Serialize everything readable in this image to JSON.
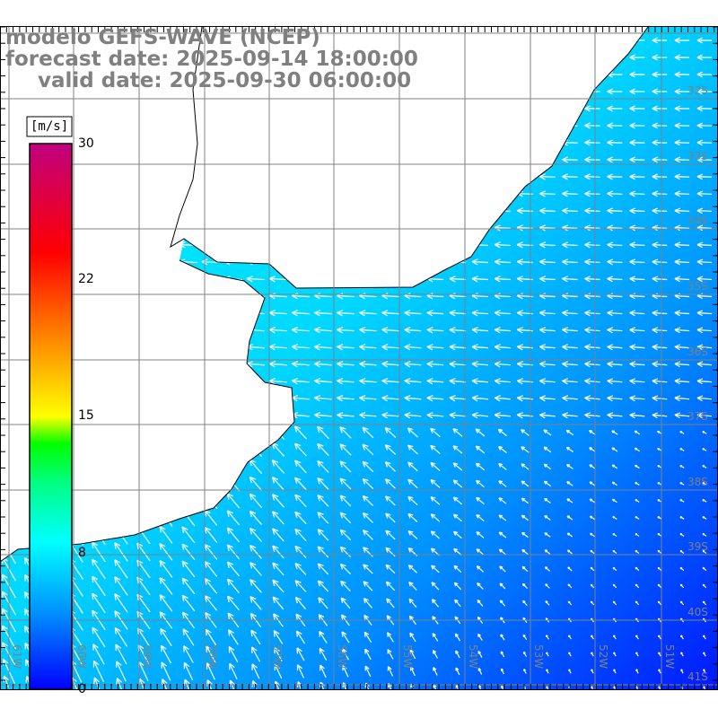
{
  "title": {
    "line1": "modelo GEFS-WAVE (NCEP)",
    "line2": "forecast date: 2025-09-14 18:00:00",
    "line3": "valid date: 2025-09-30 06:00:00"
  },
  "colorbar": {
    "unit": "[m/s]",
    "ticks": [
      "30",
      "22",
      "15",
      "8",
      "0"
    ],
    "range": [
      0,
      30
    ],
    "colors": [
      "#0000ff",
      "#00a0ff",
      "#00ffff",
      "#00ff80",
      "#00ff00",
      "#ffff00",
      "#ff8000",
      "#ff0000",
      "#c00080"
    ]
  },
  "grid": {
    "lat_labels": [
      "32S",
      "33S",
      "34S",
      "35S",
      "36S",
      "37S",
      "38S",
      "39S",
      "40S",
      "41S"
    ],
    "lon_labels": [
      "61W",
      "60W",
      "59W",
      "58W",
      "57W",
      "56W",
      "55W",
      "54W",
      "53W",
      "52W",
      "51W"
    ]
  },
  "colors": {
    "land": "#ffffff",
    "coast": "#000000",
    "grid": "#808080",
    "arrow": "#ffffff"
  }
}
